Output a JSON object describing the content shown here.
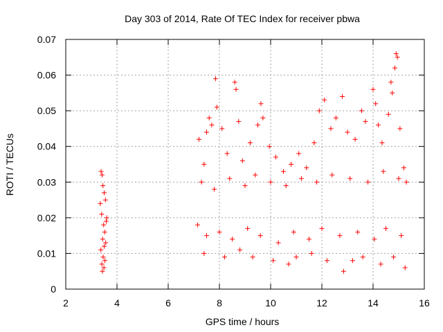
{
  "chart_data": {
    "type": "scatter",
    "title": "Day 303 of 2014, Rate Of TEC Index for receiver pbwa",
    "xlabel": "GPS time / hours",
    "ylabel": "ROTI / TECUs",
    "xlim": [
      2,
      16
    ],
    "ylim": [
      0,
      0.07
    ],
    "x_ticks": [
      2,
      4,
      6,
      8,
      10,
      12,
      14,
      16
    ],
    "x_tick_labels": [
      "2",
      "4",
      "6",
      "8",
      "10",
      "12",
      "14",
      "16"
    ],
    "y_ticks": [
      0,
      0.01,
      0.02,
      0.03,
      0.04,
      0.05,
      0.06,
      0.07
    ],
    "y_tick_labels": [
      "0",
      "0.01",
      "0.02",
      "0.03",
      "0.04",
      "0.05",
      "0.06",
      "0.07"
    ],
    "grid": true,
    "marker": "+",
    "marker_color": "#ff0000",
    "series": [
      {
        "name": "ROTI",
        "points": [
          [
            3.38,
            0.033
          ],
          [
            3.42,
            0.032
          ],
          [
            3.45,
            0.029
          ],
          [
            3.5,
            0.027
          ],
          [
            3.55,
            0.025
          ],
          [
            3.35,
            0.024
          ],
          [
            3.4,
            0.021
          ],
          [
            3.48,
            0.018
          ],
          [
            3.52,
            0.016
          ],
          [
            3.58,
            0.019
          ],
          [
            3.6,
            0.02
          ],
          [
            3.44,
            0.014
          ],
          [
            3.5,
            0.012
          ],
          [
            3.37,
            0.011
          ],
          [
            3.46,
            0.009
          ],
          [
            3.53,
            0.008
          ],
          [
            3.41,
            0.007
          ],
          [
            3.49,
            0.006
          ],
          [
            3.43,
            0.005
          ],
          [
            3.56,
            0.013
          ],
          [
            7.2,
            0.042
          ],
          [
            7.4,
            0.035
          ],
          [
            7.5,
            0.044
          ],
          [
            7.6,
            0.048
          ],
          [
            7.7,
            0.046
          ],
          [
            7.85,
            0.059
          ],
          [
            7.9,
            0.051
          ],
          [
            8.1,
            0.045
          ],
          [
            8.3,
            0.038
          ],
          [
            8.6,
            0.058
          ],
          [
            8.65,
            0.056
          ],
          [
            8.75,
            0.047
          ],
          [
            8.9,
            0.036
          ],
          [
            9.2,
            0.041
          ],
          [
            9.5,
            0.046
          ],
          [
            9.62,
            0.052
          ],
          [
            9.7,
            0.048
          ],
          [
            9.95,
            0.04
          ],
          [
            10.2,
            0.037
          ],
          [
            10.5,
            0.033
          ],
          [
            10.8,
            0.035
          ],
          [
            11.1,
            0.038
          ],
          [
            11.4,
            0.034
          ],
          [
            11.7,
            0.041
          ],
          [
            11.9,
            0.05
          ],
          [
            12.1,
            0.053
          ],
          [
            12.35,
            0.045
          ],
          [
            12.55,
            0.048
          ],
          [
            12.8,
            0.054
          ],
          [
            13.0,
            0.044
          ],
          [
            13.3,
            0.042
          ],
          [
            13.55,
            0.05
          ],
          [
            13.7,
            0.047
          ],
          [
            14.0,
            0.056
          ],
          [
            14.1,
            0.052
          ],
          [
            14.2,
            0.046
          ],
          [
            14.35,
            0.041
          ],
          [
            14.6,
            0.049
          ],
          [
            14.7,
            0.058
          ],
          [
            14.75,
            0.055
          ],
          [
            14.85,
            0.062
          ],
          [
            14.9,
            0.066
          ],
          [
            14.95,
            0.065
          ],
          [
            15.05,
            0.045
          ],
          [
            15.2,
            0.034
          ],
          [
            7.3,
            0.03
          ],
          [
            7.8,
            0.028
          ],
          [
            8.4,
            0.031
          ],
          [
            9.0,
            0.029
          ],
          [
            9.4,
            0.032
          ],
          [
            10.0,
            0.03
          ],
          [
            10.6,
            0.029
          ],
          [
            11.2,
            0.031
          ],
          [
            11.8,
            0.03
          ],
          [
            12.4,
            0.032
          ],
          [
            13.1,
            0.031
          ],
          [
            13.8,
            0.03
          ],
          [
            14.4,
            0.033
          ],
          [
            15.0,
            0.031
          ],
          [
            15.3,
            0.03
          ],
          [
            7.15,
            0.018
          ],
          [
            7.5,
            0.015
          ],
          [
            8.0,
            0.016
          ],
          [
            8.5,
            0.014
          ],
          [
            9.1,
            0.017
          ],
          [
            9.6,
            0.015
          ],
          [
            10.3,
            0.013
          ],
          [
            10.9,
            0.016
          ],
          [
            11.5,
            0.014
          ],
          [
            12.0,
            0.017
          ],
          [
            12.7,
            0.015
          ],
          [
            13.4,
            0.016
          ],
          [
            14.05,
            0.014
          ],
          [
            14.5,
            0.017
          ],
          [
            15.1,
            0.015
          ],
          [
            7.4,
            0.01
          ],
          [
            8.2,
            0.009
          ],
          [
            8.8,
            0.011
          ],
          [
            9.3,
            0.009
          ],
          [
            10.1,
            0.008
          ],
          [
            10.7,
            0.007
          ],
          [
            11.0,
            0.009
          ],
          [
            11.6,
            0.01
          ],
          [
            12.2,
            0.008
          ],
          [
            12.85,
            0.005
          ],
          [
            13.2,
            0.008
          ],
          [
            13.6,
            0.009
          ],
          [
            14.3,
            0.007
          ],
          [
            14.8,
            0.009
          ],
          [
            15.25,
            0.006
          ]
        ]
      }
    ]
  }
}
